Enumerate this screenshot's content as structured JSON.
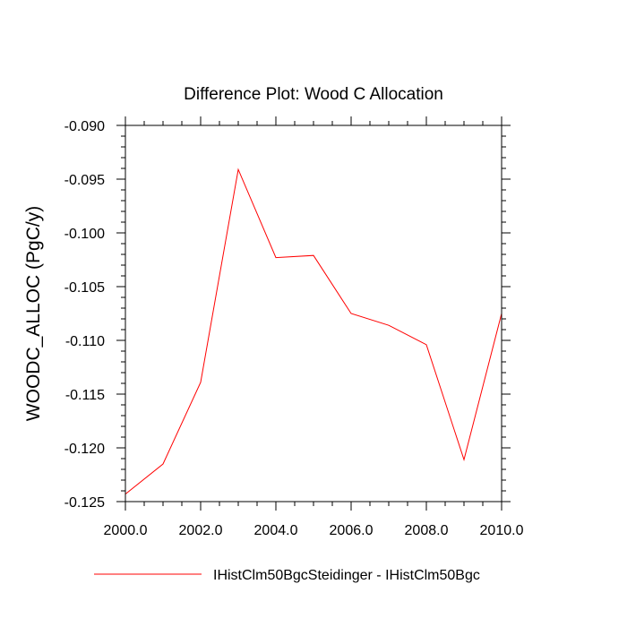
{
  "chart_data": {
    "type": "line",
    "title": "Difference Plot: Wood C Allocation",
    "ylabel": "WOODC_ALLOC  (PgC/y)",
    "xlabel": "",
    "xlim": [
      2000,
      2010
    ],
    "ylim": [
      -0.125,
      -0.09
    ],
    "x_ticks": [
      "2000.0",
      "2002.0",
      "2004.0",
      "2006.0",
      "2008.0",
      "2010.0"
    ],
    "y_ticks": [
      "-0.090",
      "-0.095",
      "-0.100",
      "-0.105",
      "-0.110",
      "-0.115",
      "-0.120",
      "-0.125"
    ],
    "grid": false,
    "legend_position": "bottom",
    "series": [
      {
        "name": "IHistClm50BgcSteidinger - IHistClm50Bgc",
        "color": "#ff0000",
        "x": [
          2000,
          2001,
          2002,
          2003,
          2004,
          2005,
          2006,
          2007,
          2008,
          2009,
          2010
        ],
        "values": [
          -0.1243,
          -0.1215,
          -0.1139,
          -0.0941,
          -0.1023,
          -0.1021,
          -0.1075,
          -0.1086,
          -0.1104,
          -0.1211,
          -0.1075
        ]
      }
    ]
  }
}
